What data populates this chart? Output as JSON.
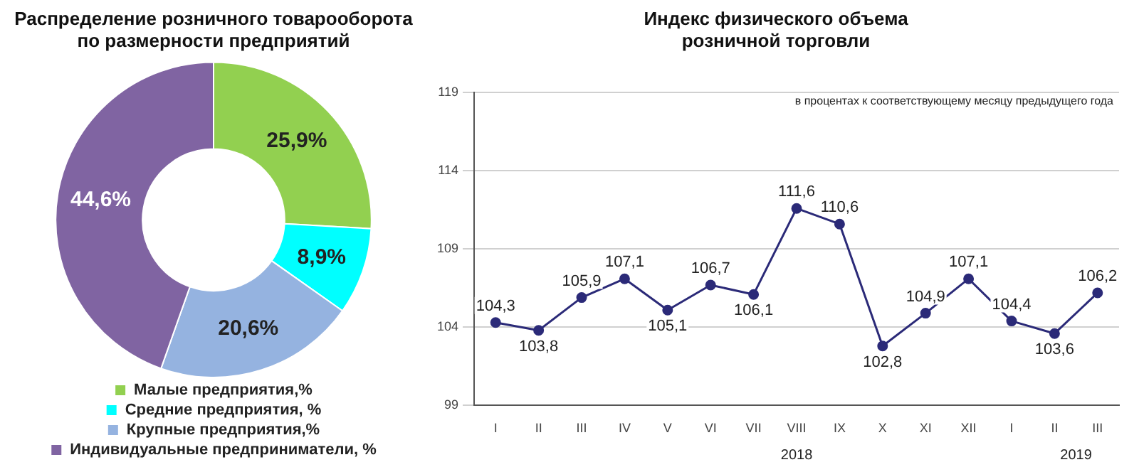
{
  "chart_data": [
    {
      "type": "donut",
      "title": "Распределение розничного товарооборота по размерности предприятий",
      "categories": [
        "Малые предприятия,%",
        "Средние предприятия, %",
        "Крупные предприятия,%",
        "Индивидуальные предприниматели, %"
      ],
      "values": [
        25.9,
        8.9,
        20.6,
        44.6
      ],
      "colors": [
        "#92d050",
        "#00ffff",
        "#95b3e0",
        "#8064a2"
      ],
      "value_labels": [
        "25,9%",
        "8,9%",
        "20,6%",
        "44,6%"
      ],
      "legend": "bottom"
    },
    {
      "type": "line",
      "title": "Индекс физического объема розничной торговли",
      "categories": [
        "I",
        "II",
        "III",
        "IV",
        "V",
        "VI",
        "VII",
        "VIII",
        "IX",
        "X",
        "XI",
        "XII",
        "I",
        "II",
        "III"
      ],
      "series": [
        {
          "color": "#2b2a78",
          "values": [
            104.3,
            103.8,
            105.9,
            107.1,
            105.1,
            106.7,
            106.1,
            111.6,
            110.6,
            102.8,
            104.9,
            107.1,
            104.4,
            103.6,
            106.2
          ],
          "value_labels": [
            "104,3",
            "103,8",
            "105,9",
            "107,1",
            "105,1",
            "106,7",
            "106,1",
            "111,6",
            "110,6",
            "102,8",
            "104,9",
            "107,1",
            "104,4",
            "103,6",
            "106,2"
          ]
        }
      ],
      "ylim": [
        99,
        119
      ],
      "yticks": [
        99,
        104,
        109,
        114,
        119
      ],
      "grid": "y",
      "marker": "circle",
      "legend": false,
      "annotations": [
        "в процентах к соответствующему месяцу предыдущего года",
        "2018",
        "2019"
      ]
    }
  ]
}
